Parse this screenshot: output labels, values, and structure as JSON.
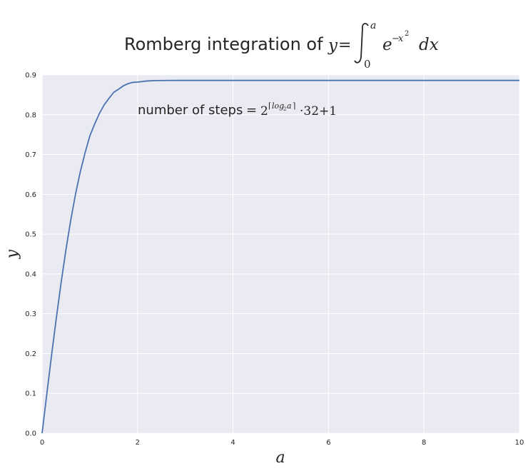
{
  "chart_data": {
    "type": "line",
    "title": {
      "prefix": "Romberg integration of",
      "lhs": "y",
      "equals": "=",
      "integral_upper": "a",
      "integral_lower": "0",
      "integrand_base": "e",
      "integrand_exp_sign": "−",
      "integrand_exp_var": "x",
      "integrand_exp_pow": "2",
      "differential": "dx"
    },
    "xlabel": "a",
    "ylabel": "y",
    "xlim": [
      0,
      10
    ],
    "ylim": [
      0,
      0.9
    ],
    "xticks": [
      0,
      2,
      4,
      6,
      8,
      10
    ],
    "yticks": [
      0.0,
      0.1,
      0.2,
      0.3,
      0.4,
      0.5,
      0.6,
      0.7,
      0.8,
      0.9
    ],
    "xtick_labels": [
      "0",
      "2",
      "4",
      "6",
      "8",
      "10"
    ],
    "ytick_labels": [
      "0.0",
      "0.1",
      "0.2",
      "0.3",
      "0.4",
      "0.5",
      "0.6",
      "0.7",
      "0.8",
      "0.9"
    ],
    "grid": true,
    "annotation": {
      "text": "number of steps",
      "equals": "=",
      "base": "2",
      "exp_ceil_left": "⌈",
      "exp_log": "log",
      "exp_log_sub": "2",
      "exp_var": "a",
      "exp_ceil_right": "⌉",
      "tail": "·32+1",
      "x": 2.0,
      "y": 0.805
    },
    "series": [
      {
        "color": "#4c72b0",
        "x": [
          0,
          0.1,
          0.2,
          0.3,
          0.4,
          0.5,
          0.6,
          0.7,
          0.8,
          0.9,
          1.0,
          1.1,
          1.2,
          1.3,
          1.4,
          1.5,
          1.6,
          1.7,
          1.8,
          1.9,
          2.0,
          2.2,
          2.4,
          2.6,
          2.8,
          3.0,
          3.5,
          4.0,
          5.0,
          6.0,
          7.0,
          8.0,
          9.0,
          10.0
        ],
        "y": [
          0.0,
          0.0997,
          0.1974,
          0.2912,
          0.3795,
          0.4613,
          0.5351,
          0.6002,
          0.6566,
          0.7041,
          0.7468,
          0.7763,
          0.803,
          0.8247,
          0.841,
          0.8563,
          0.864,
          0.8725,
          0.878,
          0.8813,
          0.8821,
          0.8849,
          0.8859,
          0.8861,
          0.8862,
          0.8862,
          0.8862,
          0.8862,
          0.8862,
          0.8862,
          0.8862,
          0.8862,
          0.8862,
          0.8862
        ]
      }
    ]
  },
  "colors": {
    "plot_background": "#eaeaf2",
    "grid": "#ffffff",
    "text": "#262626",
    "line": "#4c72b0"
  }
}
